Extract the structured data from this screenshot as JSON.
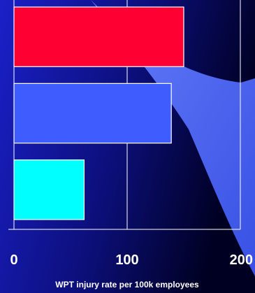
{
  "chart_data": {
    "type": "bar",
    "orientation": "horizontal",
    "title": "",
    "xlabel": "WPT injury rate per 100k employees",
    "ylabel": "",
    "xlim": [
      0,
      200
    ],
    "x_ticks": [
      "0",
      "100",
      "200"
    ],
    "grid": true,
    "legend": "none",
    "bars": [
      {
        "value": 150,
        "color": "#ff0033"
      },
      {
        "value": 139,
        "color": "#3f5cff"
      },
      {
        "value": 62,
        "color": "#00ffff"
      }
    ]
  },
  "colors": {
    "background_dark": "#000022",
    "background_blue": "#1a20c8",
    "swoosh": "#4b6bff",
    "axis": "#ffffff"
  }
}
